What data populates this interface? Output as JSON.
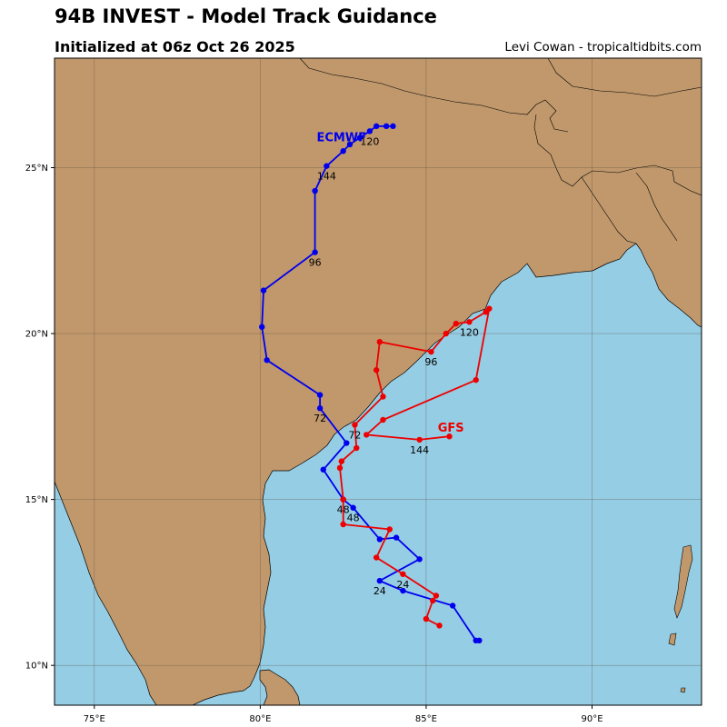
{
  "header": {
    "title": "94B INVEST - Model Track Guidance",
    "subtitle": "Initialized at 06z Oct 26 2025",
    "credit": "Levi Cowan - tropicaltidbits.com"
  },
  "colors": {
    "land": "#c0986c",
    "ocean": "#95cde4",
    "grid": "#7a6a55",
    "ecmwf": "#0000ee",
    "gfs": "#ee0000"
  },
  "map": {
    "lon_range": [
      73.8,
      93.3
    ],
    "lat_range": [
      8.8,
      28.3
    ],
    "lon_ticks": [
      {
        "v": 75,
        "label": "75°E"
      },
      {
        "v": 80,
        "label": "80°E"
      },
      {
        "v": 85,
        "label": "85°E"
      },
      {
        "v": 90,
        "label": "90°E"
      }
    ],
    "lat_ticks": [
      {
        "v": 10,
        "label": "10°N"
      },
      {
        "v": 15,
        "label": "15°N"
      },
      {
        "v": 20,
        "label": "20°N"
      },
      {
        "v": 25,
        "label": "25°N"
      }
    ]
  },
  "chart_data": {
    "type": "scatter",
    "series": [
      {
        "name": "ECMWF",
        "color": "#0000ee",
        "points": [
          [
            86.6,
            10.75
          ],
          [
            86.5,
            10.75
          ],
          [
            85.8,
            11.8
          ],
          [
            84.3,
            12.25
          ],
          [
            83.6,
            12.55
          ],
          [
            84.8,
            13.2
          ],
          [
            84.1,
            13.85
          ],
          [
            83.6,
            13.8
          ],
          [
            82.8,
            14.75
          ],
          [
            82.5,
            15.0
          ],
          [
            81.9,
            15.9
          ],
          [
            82.6,
            16.7
          ],
          [
            81.8,
            17.75
          ],
          [
            81.8,
            18.15
          ],
          [
            80.2,
            19.2
          ],
          [
            80.05,
            20.2
          ],
          [
            80.1,
            21.3
          ],
          [
            81.65,
            22.45
          ],
          [
            81.65,
            24.3
          ],
          [
            82.0,
            25.05
          ],
          [
            82.5,
            25.5
          ],
          [
            82.7,
            25.7
          ],
          [
            83.0,
            25.9
          ],
          [
            83.3,
            26.1
          ],
          [
            83.5,
            26.25
          ],
          [
            83.8,
            26.25
          ],
          [
            84.0,
            26.25
          ]
        ],
        "labels": [
          {
            "text": "24",
            "lon": 83.6,
            "lat": 12.55
          },
          {
            "text": "48",
            "lon": 82.8,
            "lat": 14.75
          },
          {
            "text": "72",
            "lon": 81.8,
            "lat": 17.75
          },
          {
            "text": "96",
            "lon": 81.65,
            "lat": 22.45
          },
          {
            "text": "120",
            "lon": 83.3,
            "lat": 26.1
          },
          {
            "text": "144",
            "lon": 82.0,
            "lat": 25.05
          }
        ],
        "name_pos": {
          "lon": 81.7,
          "lat": 25.8
        }
      },
      {
        "name": "GFS",
        "color": "#ee0000",
        "points": [
          [
            85.4,
            11.2
          ],
          [
            85.0,
            11.4
          ],
          [
            85.2,
            11.95
          ],
          [
            85.3,
            12.1
          ],
          [
            84.3,
            12.75
          ],
          [
            83.5,
            13.25
          ],
          [
            83.9,
            14.1
          ],
          [
            82.5,
            14.25
          ],
          [
            82.5,
            15.0
          ],
          [
            82.4,
            15.95
          ],
          [
            82.45,
            16.15
          ],
          [
            82.9,
            16.55
          ],
          [
            82.85,
            17.25
          ],
          [
            83.7,
            18.1
          ],
          [
            83.5,
            18.9
          ],
          [
            83.6,
            19.75
          ],
          [
            85.15,
            19.45
          ],
          [
            85.6,
            20.0
          ],
          [
            85.9,
            20.3
          ],
          [
            86.3,
            20.35
          ],
          [
            86.8,
            20.65
          ],
          [
            86.9,
            20.75
          ],
          [
            86.5,
            18.6
          ],
          [
            83.7,
            17.4
          ],
          [
            83.2,
            16.95
          ],
          [
            84.8,
            16.8
          ],
          [
            85.7,
            16.9
          ]
        ],
        "labels": [
          {
            "text": "24",
            "lon": 84.3,
            "lat": 12.75
          },
          {
            "text": "48",
            "lon": 82.5,
            "lat": 15.0
          },
          {
            "text": "72",
            "lon": 82.85,
            "lat": 17.25
          },
          {
            "text": "96",
            "lon": 85.15,
            "lat": 19.45
          },
          {
            "text": "120",
            "lon": 86.3,
            "lat": 20.35
          },
          {
            "text": "144",
            "lon": 84.8,
            "lat": 16.8
          }
        ],
        "name_pos": {
          "lon": 85.35,
          "lat": 17.05
        }
      }
    ]
  }
}
